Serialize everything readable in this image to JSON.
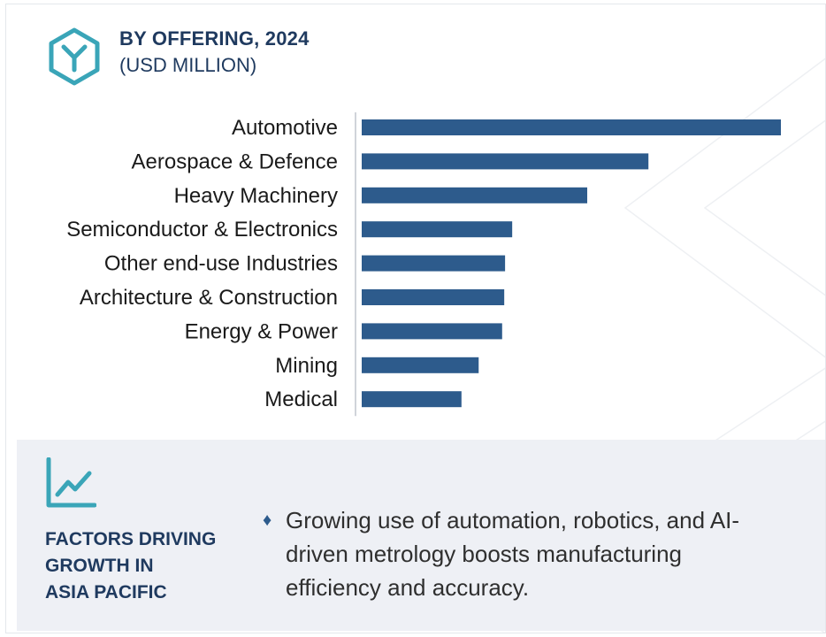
{
  "header": {
    "title": "BY OFFERING, 2024",
    "subtitle": "(USD MILLION)",
    "logo_icon": "cube-y-icon"
  },
  "colors": {
    "bar": "#2d5b8c",
    "heading": "#1f3a5f",
    "accent": "#3aa5b8",
    "panel": "#eef0f5"
  },
  "chart_data": {
    "type": "bar",
    "orientation": "horizontal",
    "categories": [
      "Automotive",
      "Aerospace & Defence",
      "Heavy Machinery",
      "Semiconductor & Electronics",
      "Other end-use Industries",
      "Architecture & Construction",
      "Energy & Power",
      "Mining",
      "Medical"
    ],
    "values": [
      100,
      68.4,
      53.8,
      35.9,
      34.2,
      34.0,
      33.5,
      27.9,
      23.8
    ],
    "value_note": "relative lengths; no value axis printed",
    "title": "BY OFFERING, 2024",
    "xlabel": "",
    "ylabel": "",
    "grid": false,
    "legend": "none"
  },
  "factors": {
    "icon": "trend-chart-icon",
    "title_lines": [
      "FACTORS DRIVING",
      "GROWTH IN",
      "ASIA PACIFIC"
    ],
    "bullet_icon": "diamond-bullet-icon",
    "text": "Growing use of automation, robotics, and AI-driven metrology boosts manufacturing efficiency and accuracy."
  }
}
